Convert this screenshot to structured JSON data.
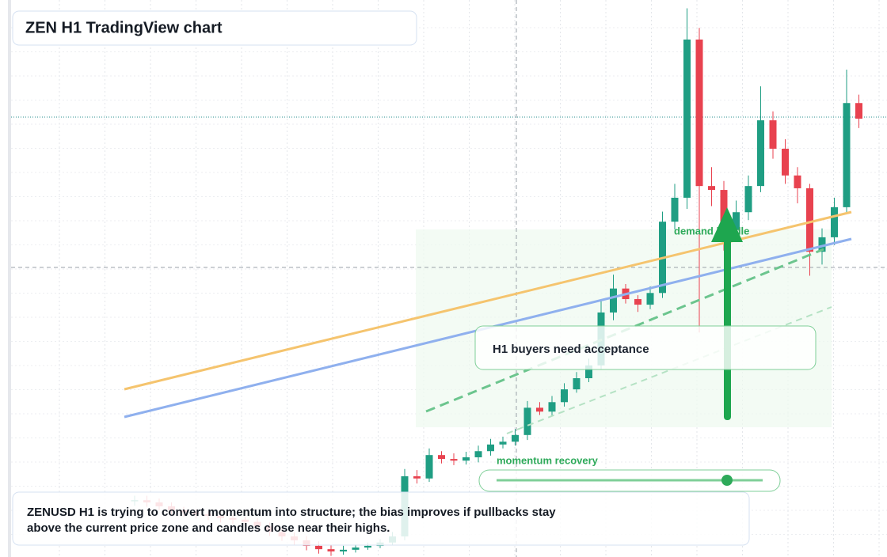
{
  "chart_data": {
    "type": "candlestick",
    "title": "ZEN H1 TradingView chart",
    "up_color": "#1f9e83",
    "down_color": "#e8424f",
    "grid": true,
    "ylim": [
      0,
      100
    ],
    "open": [
      10.0,
      10.2,
      9.8,
      9.1,
      8.4,
      8.0,
      7.7,
      7.4,
      7.0,
      6.7,
      6.3,
      5.5,
      4.5,
      3.7,
      3.0,
      2.0,
      1.4,
      1.0,
      1.3,
      1.7,
      2.0,
      2.6,
      3.7,
      14.5,
      14.1,
      18.3,
      17.6,
      17.3,
      17.9,
      19.0,
      20.2,
      20.7,
      21.9,
      26.8,
      26.1,
      27.8,
      30.1,
      32.1,
      34.4,
      43.9,
      48.2,
      46.3,
      45.3,
      47.4,
      60.2,
      64.5,
      92.9,
      66.6,
      65.9,
      58.8,
      61.9,
      66.6,
      78.4,
      73.3,
      68.5,
      66.2,
      54.8,
      57.4,
      62.8,
      81.5
    ],
    "high": [
      11.0,
      11.0,
      10.5,
      9.8,
      9.0,
      8.6,
      8.3,
      8.0,
      7.6,
      7.3,
      7.0,
      6.2,
      5.2,
      4.4,
      3.8,
      2.8,
      2.2,
      2.0,
      2.3,
      2.6,
      3.2,
      4.5,
      15.8,
      15.6,
      19.5,
      19.0,
      18.6,
      18.9,
      20.0,
      21.2,
      21.6,
      23.0,
      28.0,
      27.8,
      28.9,
      31.2,
      33.2,
      35.6,
      46.0,
      50.7,
      49.0,
      47.0,
      48.6,
      62.0,
      67.0,
      98.5,
      95.0,
      70.0,
      67.5,
      64.0,
      68.5,
      84.5,
      80.0,
      75.0,
      70.0,
      67.0,
      59.0,
      64.5,
      87.5,
      83.0
    ],
    "low": [
      9.2,
      9.0,
      8.4,
      7.6,
      7.2,
      6.9,
      6.6,
      6.2,
      5.9,
      5.5,
      4.7,
      3.8,
      2.9,
      2.1,
      1.2,
      0.6,
      0.2,
      0.4,
      0.8,
      1.3,
      1.6,
      2.2,
      3.0,
      13.2,
      13.5,
      16.8,
      16.5,
      16.6,
      17.0,
      18.2,
      19.5,
      20.0,
      21.0,
      25.5,
      25.4,
      27.0,
      29.5,
      31.4,
      33.6,
      42.5,
      45.5,
      44.0,
      44.5,
      46.5,
      58.8,
      62.5,
      40.3,
      63.0,
      55.0,
      57.5,
      60.5,
      65.5,
      71.5,
      67.0,
      63.5,
      50.5,
      52.5,
      56.0,
      61.5,
      77.0
    ],
    "close": [
      10.2,
      9.8,
      9.1,
      8.4,
      8.0,
      7.7,
      7.4,
      7.0,
      6.7,
      6.3,
      5.5,
      4.5,
      3.7,
      3.0,
      2.0,
      1.4,
      1.0,
      1.3,
      1.7,
      2.0,
      2.6,
      3.7,
      14.5,
      14.1,
      18.3,
      17.6,
      17.3,
      17.9,
      19.0,
      20.2,
      20.7,
      21.9,
      26.8,
      26.1,
      27.8,
      30.1,
      32.1,
      34.4,
      43.9,
      48.2,
      46.3,
      45.3,
      47.4,
      60.2,
      64.5,
      92.9,
      66.6,
      65.9,
      58.8,
      61.9,
      66.6,
      78.4,
      73.3,
      68.5,
      66.2,
      54.8,
      57.4,
      62.8,
      81.5,
      78.7
    ],
    "annotations": {
      "zone_label": "demand handle",
      "callout": "H1 buyers need acceptance",
      "slider_label": "momentum recovery",
      "summary": [
        "ZENUSD H1 is trying to convert momentum into structure; the bias improves if pullbacks stay",
        "above the current price zone and candles close near their highs."
      ]
    }
  }
}
